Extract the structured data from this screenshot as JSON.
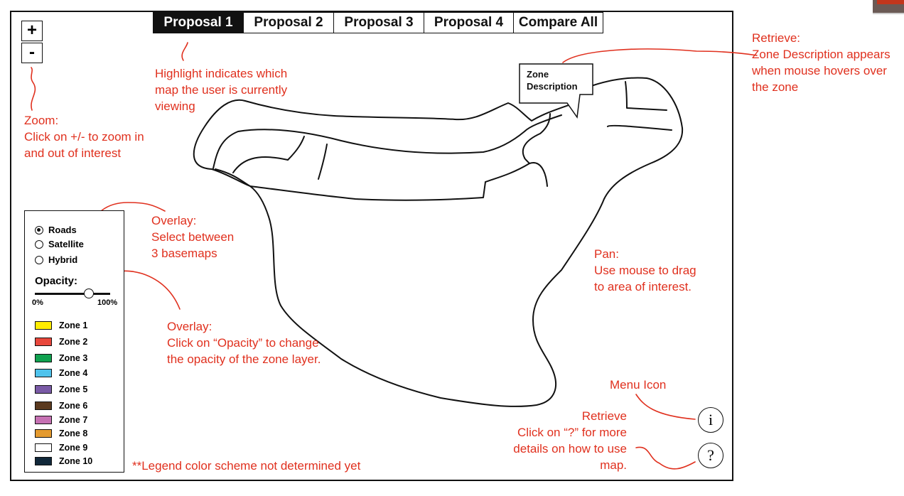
{
  "tabs": [
    {
      "label": "Proposal 1",
      "active": true
    },
    {
      "label": "Proposal 2",
      "active": false
    },
    {
      "label": "Proposal 3",
      "active": false
    },
    {
      "label": "Proposal 4",
      "active": false
    },
    {
      "label": "Compare All",
      "active": false
    }
  ],
  "zoom": {
    "in_label": "+",
    "out_label": "-"
  },
  "basemaps": [
    {
      "label": "Roads",
      "selected": true
    },
    {
      "label": "Satellite",
      "selected": false
    },
    {
      "label": "Hybrid",
      "selected": false
    }
  ],
  "opacity": {
    "title": "Opacity:",
    "min_label": "0%",
    "max_label": "100%",
    "value_fraction": 0.72
  },
  "zones": [
    {
      "label": "Zone 1",
      "color": "#ffed00"
    },
    {
      "label": "Zone 2",
      "color": "#e8473c"
    },
    {
      "label": "Zone 3",
      "color": "#0fa14f"
    },
    {
      "label": "Zone 4",
      "color": "#4fc3ec"
    },
    {
      "label": "Zone 5",
      "color": "#7a5aa6"
    },
    {
      "label": "Zone 6",
      "color": "#5b3a1f"
    },
    {
      "label": "Zone 7",
      "color": "#c671b3"
    },
    {
      "label": "Zone 8",
      "color": "#e49a2e"
    },
    {
      "label": "Zone 9",
      "color": "#ffffff"
    },
    {
      "label": "Zone 10",
      "color": "#11283a"
    }
  ],
  "zone_description_popup": "Zone\nDescription",
  "info_icon": "i",
  "help_icon": "?",
  "annotations": {
    "highlight": "Highlight indicates which\nmap the user is currently\nviewing",
    "zoom": "Zoom:\nClick on +/- to zoom in\nand out of interest",
    "overlay_basemap": "Overlay:\nSelect between\n3 basemaps",
    "overlay_opacity": "Overlay:\nClick on “Opacity” to change\nthe opacity of the zone layer.",
    "retrieve_zone": "Retrieve:\nZone Description appears\nwhen mouse hovers over\nthe zone",
    "pan": "Pan:\nUse mouse to drag\nto area of interest.",
    "menu_icon": "Menu Icon",
    "retrieve_help": "Retrieve\nClick on “?” for more\ndetails on how to use\nmap.",
    "legend_note": "**Legend color scheme not determined yet"
  },
  "colors": {
    "annotation": "#e0301e",
    "ink": "#111111",
    "active_tab_bg": "#111111"
  }
}
